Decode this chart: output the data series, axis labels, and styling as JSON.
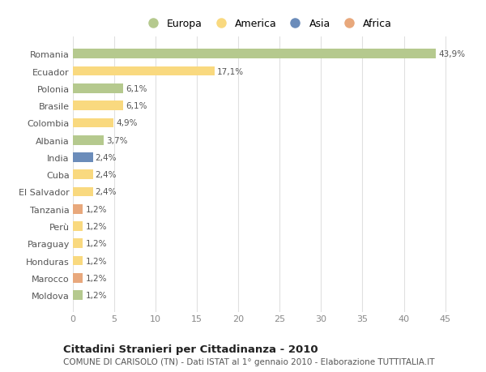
{
  "countries": [
    "Romania",
    "Ecuador",
    "Polonia",
    "Brasile",
    "Colombia",
    "Albania",
    "India",
    "Cuba",
    "El Salvador",
    "Tanzania",
    "Perù",
    "Paraguay",
    "Honduras",
    "Marocco",
    "Moldova"
  ],
  "values": [
    43.9,
    17.1,
    6.1,
    6.1,
    4.9,
    3.7,
    2.4,
    2.4,
    2.4,
    1.2,
    1.2,
    1.2,
    1.2,
    1.2,
    1.2
  ],
  "labels": [
    "43,9%",
    "17,1%",
    "6,1%",
    "6,1%",
    "4,9%",
    "3,7%",
    "2,4%",
    "2,4%",
    "2,4%",
    "1,2%",
    "1,2%",
    "1,2%",
    "1,2%",
    "1,2%",
    "1,2%"
  ],
  "categories": [
    "Europa",
    "America",
    "Europa",
    "America",
    "America",
    "Europa",
    "Asia",
    "America",
    "America",
    "Africa",
    "America",
    "America",
    "America",
    "Africa",
    "Europa"
  ],
  "colors": {
    "Europa": "#b5c98e",
    "America": "#f9d97f",
    "Asia": "#6b8cba",
    "Africa": "#e8a87c"
  },
  "legend_order": [
    "Europa",
    "America",
    "Asia",
    "Africa"
  ],
  "legend_colors": [
    "#b5c98e",
    "#f9d97f",
    "#6b8cba",
    "#e8a87c"
  ],
  "title": "Cittadini Stranieri per Cittadinanza - 2010",
  "subtitle": "COMUNE DI CARISOLO (TN) - Dati ISTAT al 1° gennaio 2010 - Elaborazione TUTTITALIA.IT",
  "xlim": [
    0,
    47
  ],
  "xticks": [
    0,
    5,
    10,
    15,
    20,
    25,
    30,
    35,
    40,
    45
  ],
  "background_color": "#ffffff",
  "grid_color": "#e0e0e0",
  "bar_height": 0.55
}
